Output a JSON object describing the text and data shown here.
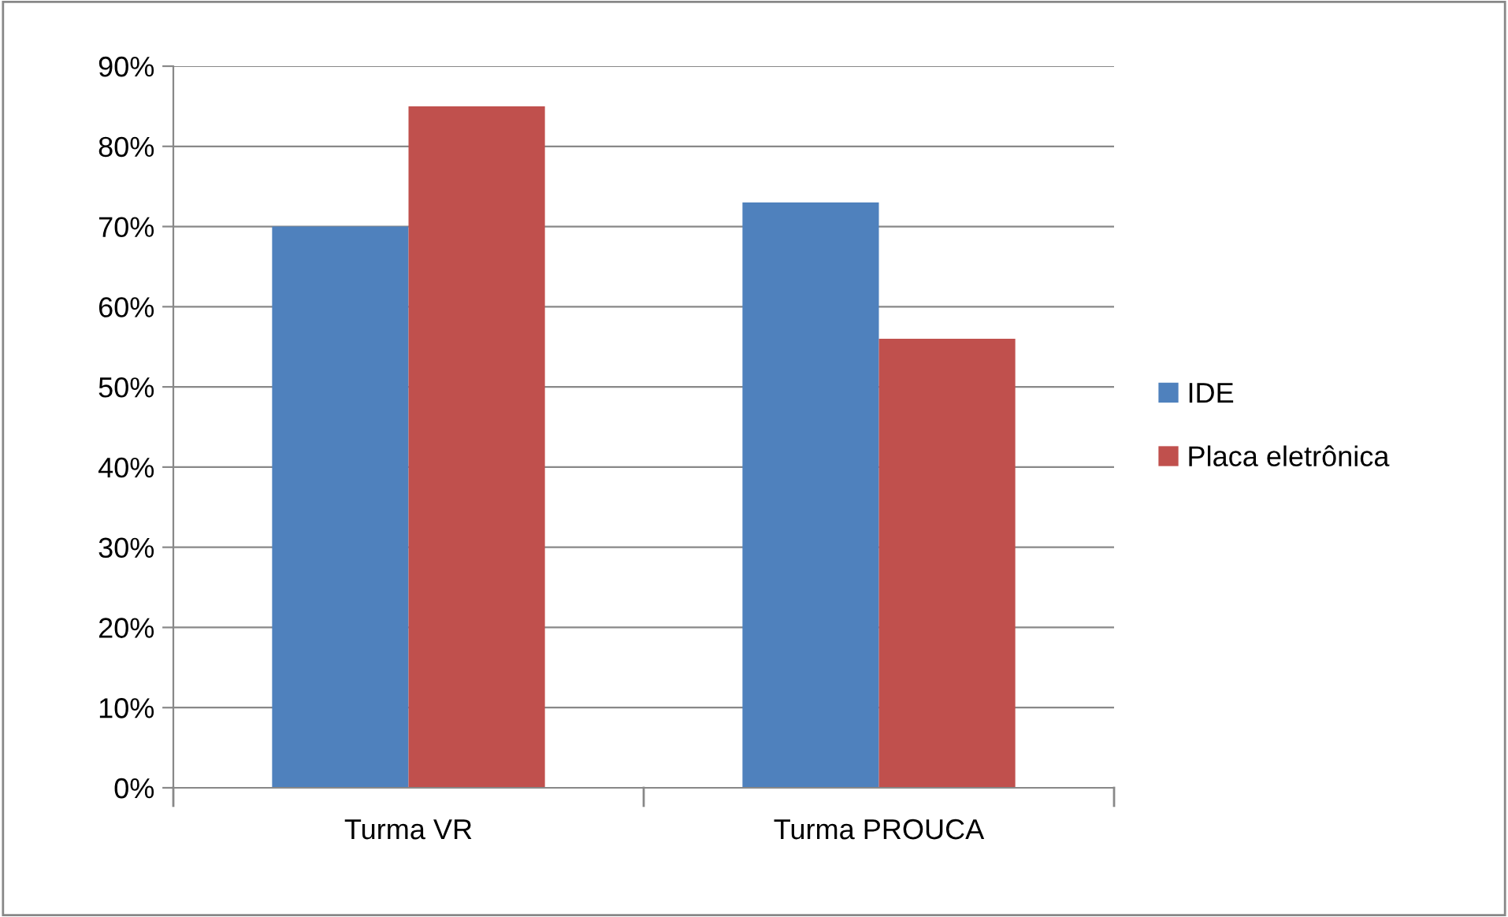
{
  "chart_data": {
    "type": "bar",
    "categories": [
      "Turma VR",
      "Turma PROUCA"
    ],
    "series": [
      {
        "name": "IDE",
        "color": "#4f81bd",
        "values": [
          70,
          73
        ]
      },
      {
        "name": "Placa eletrônica",
        "color": "#c0504d",
        "values": [
          85,
          56
        ]
      }
    ],
    "ylim": [
      0,
      90
    ],
    "yticks": [
      {
        "value": 0,
        "label": "0%"
      },
      {
        "value": 10,
        "label": "10%"
      },
      {
        "value": 20,
        "label": "20%"
      },
      {
        "value": 30,
        "label": "30%"
      },
      {
        "value": 40,
        "label": "40%"
      },
      {
        "value": 50,
        "label": "50%"
      },
      {
        "value": 60,
        "label": "60%"
      },
      {
        "value": 70,
        "label": "70%"
      },
      {
        "value": 80,
        "label": "80%"
      },
      {
        "value": 90,
        "label": "90%"
      }
    ],
    "grid": "y",
    "legend": "right"
  }
}
